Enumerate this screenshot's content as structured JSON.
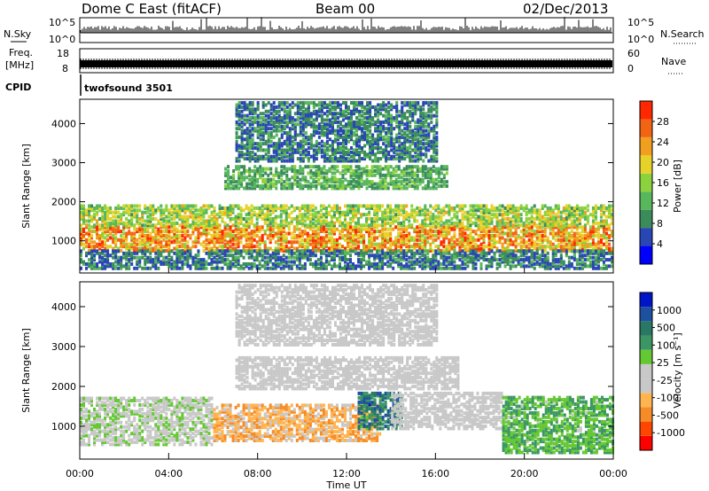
{
  "header": {
    "title": "Dome C East (fitACF)",
    "beam": "Beam 00",
    "date": "02/Dec/2013"
  },
  "strip_labels": {
    "nsky": "N.Sky",
    "nsky_ticks": [
      "10^5",
      "10^0"
    ],
    "nsearch": "N.Search",
    "nsearch_ticks": [
      "10^5",
      "10^0"
    ],
    "freq_label_1": "Freq.",
    "freq_label_2": "[MHz]",
    "freq_ticks": [
      "18",
      "8"
    ],
    "nave": "Nave",
    "nave_ticks": [
      "60",
      "0"
    ],
    "cpid": "CPID",
    "cpid_value": "twofsound 3501"
  },
  "colors": {
    "power": [
      "#0000ff",
      "#2846b4",
      "#3a8c5a",
      "#58b65c",
      "#8cd23c",
      "#e6d228",
      "#f0a01e",
      "#f06414",
      "#ff2800"
    ],
    "velocity": [
      "#ff0000",
      "#ff4600",
      "#f58c28",
      "#ffb450",
      "#c8c8c8",
      "#c8c8c8",
      "#64c832",
      "#3c9664",
      "#287864",
      "#1e50a0",
      "#0014c8"
    ]
  },
  "chart_data": [
    {
      "type": "heatmap",
      "panel": "power",
      "xlabel": "",
      "ylabel": "Slant Range [km]",
      "yticks": [
        1000,
        2000,
        3000,
        4000
      ],
      "ylim": [
        200,
        4600
      ],
      "xlim": [
        0,
        24
      ],
      "colorbar_label": "Power [dB]",
      "colorbar_ticks": [
        "4",
        "8",
        "12",
        "16",
        "20",
        "24",
        "28"
      ],
      "regions": [
        {
          "t0": 0.0,
          "t1": 24.0,
          "r0": 700,
          "r1": 1350,
          "v0": 16,
          "v1": 30
        },
        {
          "t0": 0.0,
          "t1": 24.0,
          "r0": 1350,
          "r1": 1900,
          "v0": 10,
          "v1": 22
        },
        {
          "t0": 0.0,
          "t1": 24.0,
          "r0": 250,
          "r1": 700,
          "v0": 4,
          "v1": 12
        },
        {
          "t0": 6.5,
          "t1": 16.5,
          "r0": 2300,
          "r1": 2900,
          "v0": 8,
          "v1": 16
        },
        {
          "t0": 7.0,
          "t1": 16.0,
          "r0": 3000,
          "r1": 4500,
          "v0": 4,
          "v1": 12
        }
      ]
    },
    {
      "type": "heatmap",
      "panel": "velocity",
      "xlabel": "Time UT",
      "ylabel": "Slant Range [km]",
      "yticks": [
        1000,
        2000,
        3000,
        4000
      ],
      "ylim": [
        200,
        4600
      ],
      "xlim": [
        0,
        24
      ],
      "xticks": [
        "00:00",
        "04:00",
        "08:00",
        "12:00",
        "16:00",
        "20:00",
        "00:00"
      ],
      "colorbar_label": "Velocity [m s⁻¹]",
      "colorbar_ticks": [
        "-1000",
        "-500",
        "-100",
        "-25",
        "25",
        "100",
        "500",
        "1000"
      ],
      "regions": [
        {
          "t0": 0.0,
          "t1": 6.0,
          "r0": 500,
          "r1": 1700,
          "v0": -100,
          "v1": 200
        },
        {
          "t0": 6.0,
          "t1": 13.5,
          "r0": 600,
          "r1": 1500,
          "v0": -700,
          "v1": -200
        },
        {
          "t0": 12.5,
          "t1": 14.5,
          "r0": 900,
          "r1": 1800,
          "v0": 300,
          "v1": 1000
        },
        {
          "t0": 14.0,
          "t1": 19.0,
          "r0": 900,
          "r1": 1800,
          "v0": -50,
          "v1": 50
        },
        {
          "t0": 19.0,
          "t1": 24.0,
          "r0": 300,
          "r1": 1700,
          "v0": 100,
          "v1": 500
        },
        {
          "t0": 7.0,
          "t1": 17.0,
          "r0": 1900,
          "r1": 2700,
          "v0": -20,
          "v1": 20
        },
        {
          "t0": 7.0,
          "t1": 16.0,
          "r0": 3000,
          "r1": 4500,
          "v0": -30,
          "v1": 30
        }
      ]
    }
  ]
}
